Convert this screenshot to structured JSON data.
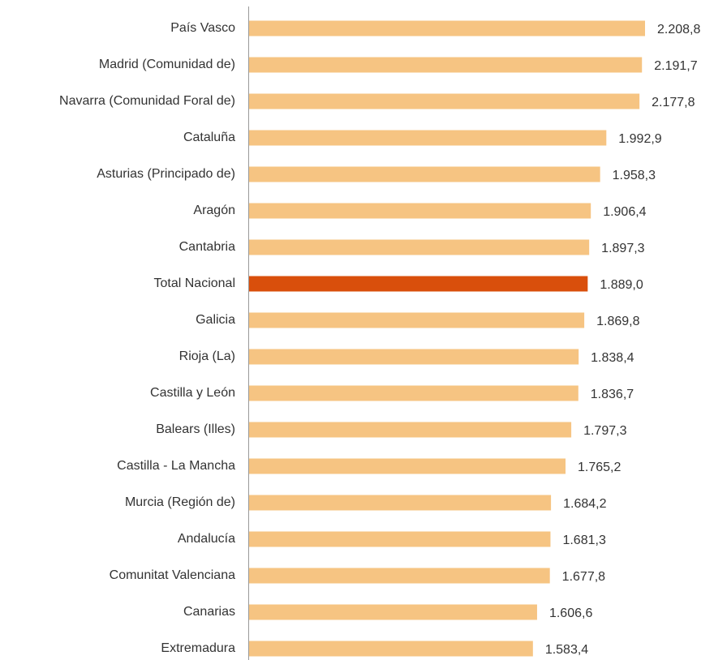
{
  "chart_data": {
    "type": "bar",
    "orientation": "horizontal",
    "categories": [
      "País Vasco",
      "Madrid (Comunidad de)",
      "Navarra (Comunidad Foral de)",
      "Cataluña",
      "Asturias (Principado de)",
      "Aragón",
      "Cantabria",
      "Total Nacional",
      "Galicia",
      "Rioja (La)",
      "Castilla y León",
      "Balears (Illes)",
      "Castilla - La Mancha",
      "Murcia (Región de)",
      "Andalucía",
      "Comunitat Valenciana",
      "Canarias",
      "Extremadura"
    ],
    "values": [
      2208.8,
      2191.7,
      2177.8,
      1992.9,
      1958.3,
      1906.4,
      1897.3,
      1889.0,
      1869.8,
      1838.4,
      1836.7,
      1797.3,
      1765.2,
      1684.2,
      1681.3,
      1677.8,
      1606.6,
      1583.4
    ],
    "value_labels": [
      "2.208,8",
      "2.191,7",
      "2.177,8",
      "1.992,9",
      "1.958,3",
      "1.906,4",
      "1.897,3",
      "1.889,0",
      "1.869,8",
      "1.838,4",
      "1.836,7",
      "1.797,3",
      "1.765,2",
      "1.684,2",
      "1.681,3",
      "1.677,8",
      "1.606,6",
      "1.583,4"
    ],
    "colors": [
      "#f6c482",
      "#f6c482",
      "#f6c482",
      "#f6c482",
      "#f6c482",
      "#f6c482",
      "#f6c482",
      "#d94f0c",
      "#f6c482",
      "#f6c482",
      "#f6c482",
      "#f6c482",
      "#f6c482",
      "#f6c482",
      "#f6c482",
      "#f6c482",
      "#f6c482",
      "#f6c482"
    ]
  }
}
